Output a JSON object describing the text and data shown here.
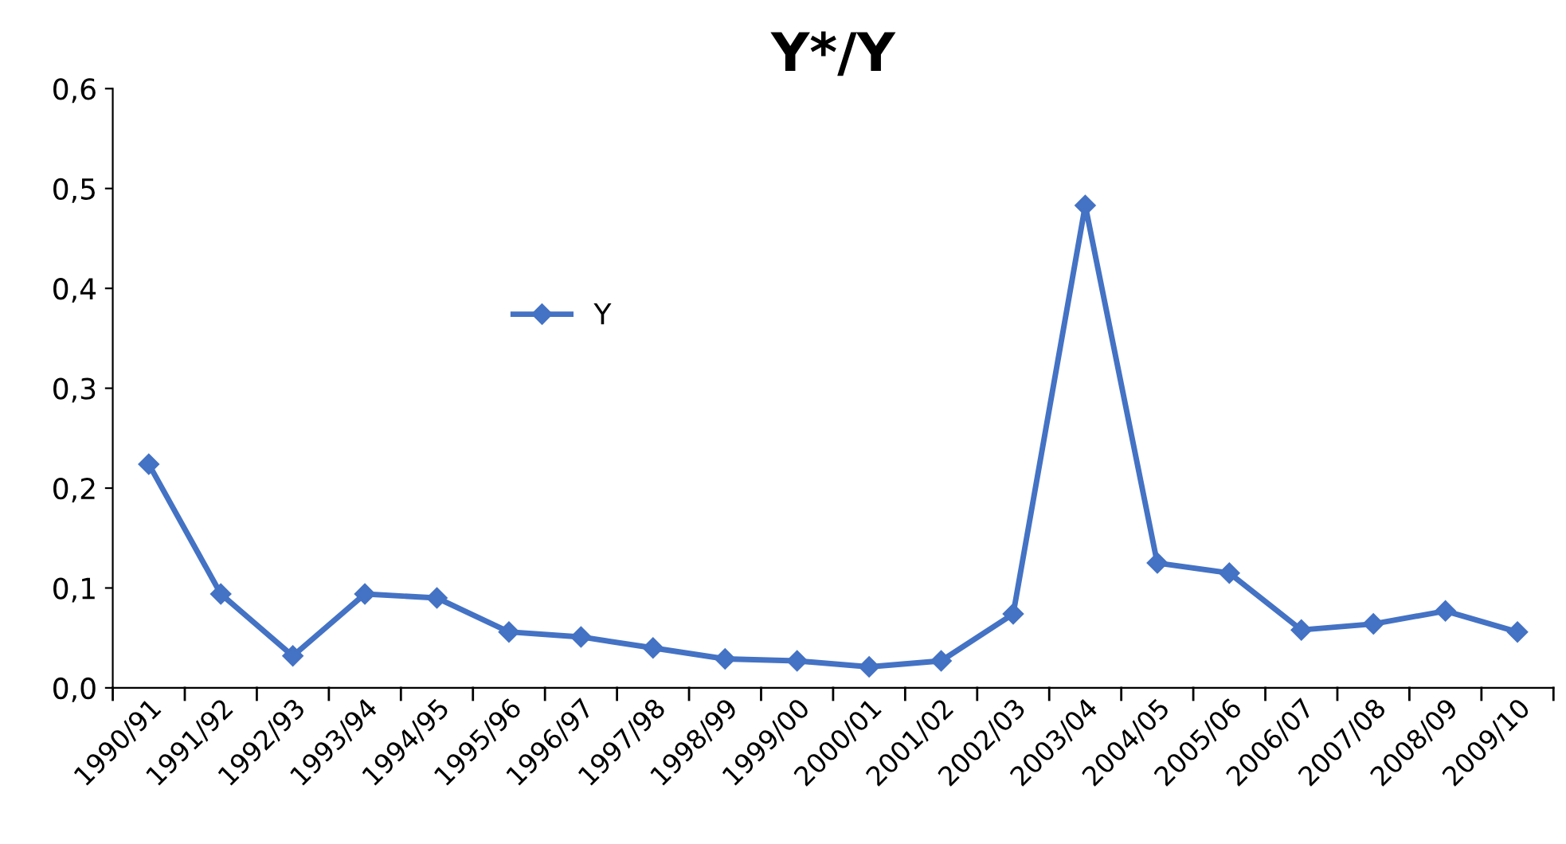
{
  "chart_data": {
    "type": "line",
    "title": "Y*/Y",
    "categories": [
      "1990/91",
      "1991/92",
      "1992/93",
      "1993/94",
      "1994/95",
      "1995/96",
      "1996/97",
      "1997/98",
      "1998/99",
      "1999/00",
      "2000/01",
      "2001/02",
      "2002/03",
      "2003/04",
      "2004/05",
      "2005/06",
      "2006/07",
      "2007/08",
      "2008/09",
      "2009/10"
    ],
    "series": [
      {
        "name": "Y",
        "color": "#4472c4",
        "values": [
          0.224,
          0.094,
          0.032,
          0.094,
          0.09,
          0.056,
          0.051,
          0.04,
          0.029,
          0.027,
          0.021,
          0.027,
          0.074,
          0.483,
          0.125,
          0.115,
          0.058,
          0.064,
          0.077,
          0.056
        ]
      }
    ],
    "ylim": [
      0,
      0.6
    ],
    "yticks": [
      {
        "value": 0,
        "label": "0,0"
      },
      {
        "value": 0.1,
        "label": "0,1"
      },
      {
        "value": 0.2,
        "label": "0,2"
      },
      {
        "value": 0.3,
        "label": "0,3"
      },
      {
        "value": 0.4,
        "label": "0,4"
      },
      {
        "value": 0.5,
        "label": "0,5"
      },
      {
        "value": 0.6,
        "label": "0,6"
      }
    ],
    "grid": false,
    "legend": "center left",
    "marker": "diamond",
    "line_style": "solid"
  }
}
